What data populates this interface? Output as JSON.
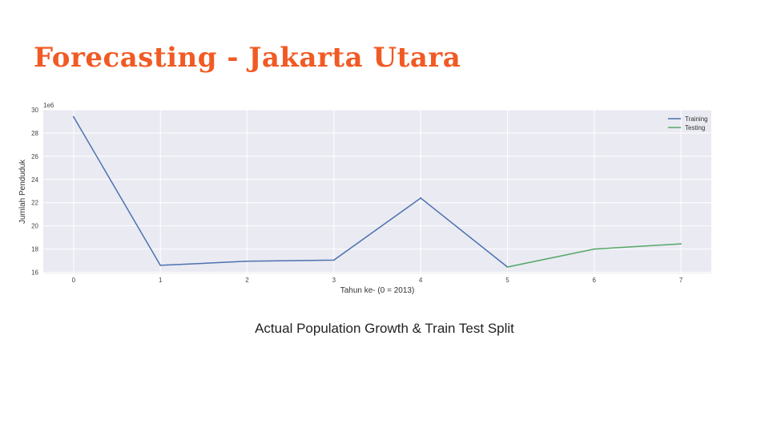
{
  "slide": {
    "title": "Forecasting - Jakarta Utara",
    "caption": "Actual Population Growth & Train Test Split"
  },
  "chart_data": {
    "type": "line",
    "title": "",
    "xlabel": "Tahun ke- (0 = 2013)",
    "ylabel": "Jumlah Penduduk",
    "y_offset_label": "1e6",
    "x_ticks": [
      0,
      1,
      2,
      3,
      4,
      5,
      6,
      7
    ],
    "y_ticks": [
      16,
      18,
      20,
      22,
      24,
      26,
      28,
      30
    ],
    "xlim": [
      -0.35,
      7.35
    ],
    "ylim": [
      15.9,
      30.0
    ],
    "grid": true,
    "background": "#eaeaf2",
    "legend_position": "top-right",
    "series": [
      {
        "name": "Training",
        "color": "#4c72b0",
        "x": [
          0,
          1,
          2,
          3,
          4,
          5
        ],
        "y": [
          29.4,
          16.6,
          16.95,
          17.05,
          22.4,
          16.45
        ]
      },
      {
        "name": "Testing",
        "color": "#55a868",
        "x": [
          5,
          6,
          7
        ],
        "y": [
          16.45,
          18.0,
          18.45
        ]
      }
    ]
  }
}
